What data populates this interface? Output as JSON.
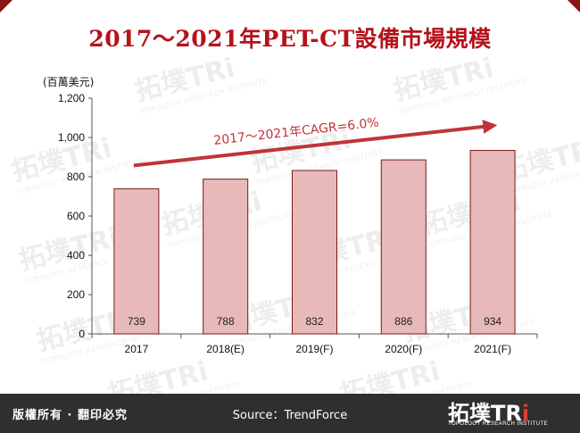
{
  "header": {
    "title": "2017～2021年PET-CT設備市場規模"
  },
  "chart_data": {
    "type": "bar",
    "unit_label": "(百萬美元)",
    "categories": [
      "2017",
      "2018(E)",
      "2019(F)",
      "2020(F)",
      "2021(F)"
    ],
    "values": [
      739,
      788,
      832,
      886,
      934
    ],
    "data_labels": [
      "739",
      "788",
      "832",
      "886",
      "934"
    ],
    "ylim": [
      0,
      1200
    ],
    "yticks": [
      0,
      200,
      400,
      600,
      800,
      1000,
      1200
    ],
    "ytick_labels": [
      "0",
      "200",
      "400",
      "600",
      "800",
      "1,000",
      "1,200"
    ],
    "annotation": "2017～2021年CAGR=6.0%",
    "bar_color": "#e8b9b9",
    "bar_border": "#7a1a1a",
    "arrow_color": "#c0343a",
    "grid": false,
    "legend": "none"
  },
  "footer": {
    "rights": "版權所有 · 翻印必究",
    "source": "Source：TrendForce",
    "logo_main": "拓墣TR",
    "logo_i": "i",
    "logo_sub": "TOPOLOGY RESEARCH INSTITUTE"
  },
  "watermark": {
    "main": "拓墣TRi",
    "sub": "TOPOLOGY RESEARCH INSTITUTE"
  },
  "colors": {
    "title": "#b5121b",
    "frame_corner": "#8a1512",
    "footer_bg": "#2f2f2f"
  }
}
